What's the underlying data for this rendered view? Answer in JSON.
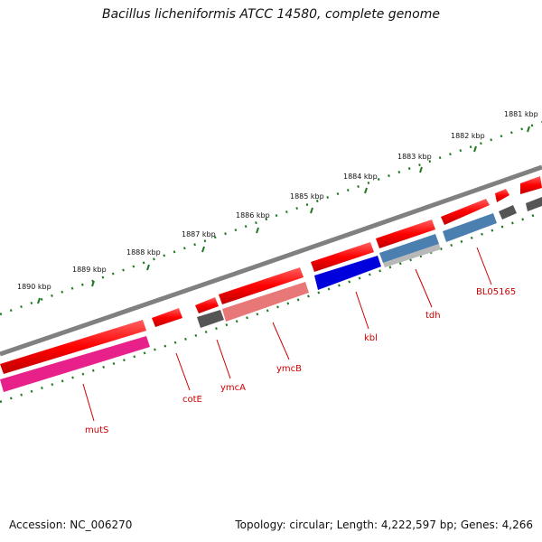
{
  "title": "Bacillus licheniformis ATCC 14580, complete genome",
  "footer": {
    "accession": "Accession: NC_006270",
    "summary": "Topology: circular; Length: 4,222,597 bp; Genes: 4,266"
  },
  "scale_labels": [
    "1881 kbp",
    "1882 kbp",
    "1883 kbp",
    "1884 kbp",
    "1885 kbp",
    "1886 kbp",
    "1887 kbp",
    "1888 kbp",
    "1889 kbp",
    "1890 kbp"
  ],
  "gene_labels": [
    "BL05165",
    "tdh",
    "kbl",
    "ymcB",
    "ymcA",
    "cotE",
    "mutS"
  ],
  "colors": {
    "forward_gene": "#ff0000",
    "backbone": "#808080",
    "tick": "#1f7a1f",
    "label": "#cc0000",
    "kbl": "#0000dd",
    "tdh": "#4a7fb0",
    "ymcB": "#e87878",
    "mutS": "#e8208a",
    "grey_gene": "#555555"
  }
}
